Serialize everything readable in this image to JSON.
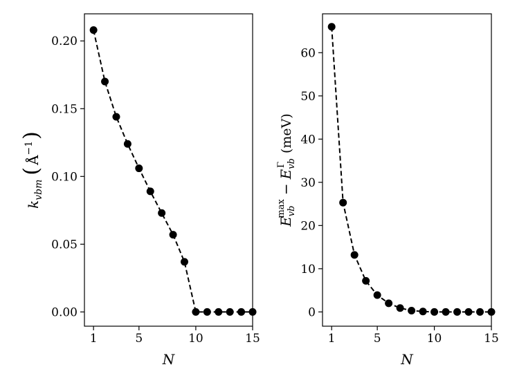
{
  "chart_data": [
    {
      "type": "line",
      "xlabel": "N",
      "ylabel": "k_vbm (Å⁻¹)",
      "ylabel_parts": {
        "var": "k",
        "sub": "vbm",
        "paren_open": "(",
        "unit": "Å",
        "unit_sup": "−1",
        "paren_close": ")"
      },
      "xlim": [
        0.2,
        15
      ],
      "ylim": [
        -0.0105,
        0.22
      ],
      "xticks": [
        1,
        5,
        10,
        15
      ],
      "xtick_labels": [
        "1",
        "5",
        "10",
        "15"
      ],
      "yticks": [
        0.0,
        0.05,
        0.1,
        0.15,
        0.2
      ],
      "ytick_labels": [
        "0.00",
        "0.05",
        "0.10",
        "0.15",
        "0.20"
      ],
      "grid": false,
      "line_style": "dashed",
      "marker": "circle",
      "color": "#000000",
      "series": [
        {
          "x": [
            1,
            2,
            3,
            4,
            5,
            6,
            7,
            8,
            9,
            10,
            11,
            12,
            13,
            14,
            15
          ],
          "values": [
            0.208,
            0.17,
            0.144,
            0.124,
            0.106,
            0.089,
            0.073,
            0.057,
            0.037,
            0.0,
            0.0,
            0.0,
            0.0,
            0.0,
            0.0
          ]
        }
      ]
    },
    {
      "type": "line",
      "xlabel": "N",
      "ylabel": "E_vb^max − E_vb^Γ (meV)",
      "ylabel_parts": {
        "a": "E",
        "a_sub": "vb",
        "a_sup": "max",
        "minus": "−",
        "b": "E",
        "b_sub": "vb",
        "b_sup": "Γ",
        "unit": "(meV)"
      },
      "xlim": [
        0.2,
        15
      ],
      "ylim": [
        -3.3,
        69
      ],
      "xticks": [
        1,
        5,
        10,
        15
      ],
      "xtick_labels": [
        "1",
        "5",
        "10",
        "15"
      ],
      "yticks": [
        0,
        10,
        20,
        30,
        40,
        50,
        60
      ],
      "ytick_labels": [
        "0",
        "10",
        "20",
        "30",
        "40",
        "50",
        "60"
      ],
      "grid": false,
      "line_style": "dashed",
      "marker": "circle",
      "color": "#000000",
      "series": [
        {
          "x": [
            1,
            2,
            3,
            4,
            5,
            6,
            7,
            8,
            9,
            10,
            11,
            12,
            13,
            14,
            15
          ],
          "values": [
            66.0,
            25.3,
            13.2,
            7.2,
            3.9,
            2.0,
            0.9,
            0.3,
            0.1,
            0.0,
            0.0,
            0.0,
            0.0,
            0.0,
            0.0
          ]
        }
      ]
    }
  ]
}
